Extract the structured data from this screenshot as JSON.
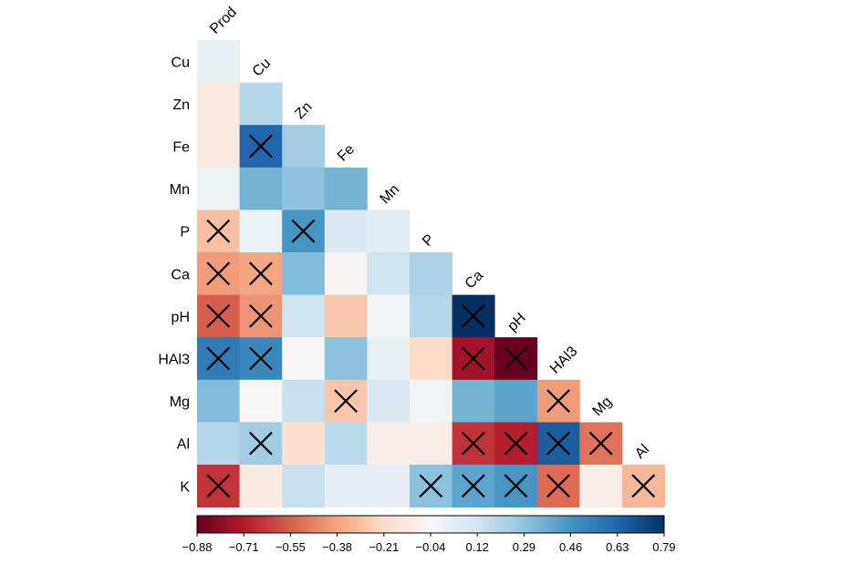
{
  "chart_data": {
    "type": "heatmap",
    "variables": [
      "Prod",
      "Cu",
      "Zn",
      "Fe",
      "Mn",
      "P",
      "Ca",
      "pH",
      "HAl3",
      "Mg",
      "Al",
      "K"
    ],
    "row_labels": [
      "Cu",
      "Zn",
      "Fe",
      "Mn",
      "P",
      "Ca",
      "pH",
      "HAl3",
      "Mg",
      "Al",
      "K"
    ],
    "column_labels": [
      "Prod",
      "Cu",
      "Zn",
      "Fe",
      "Mn",
      "P",
      "Ca",
      "pH",
      "HAl3",
      "Mg",
      "Al"
    ],
    "values": [
      [
        0.02
      ],
      [
        -0.12,
        0.2
      ],
      [
        -0.12,
        0.62,
        0.25
      ],
      [
        0.0,
        0.35,
        0.3,
        0.35
      ],
      [
        -0.3,
        0.01,
        0.45,
        0.08,
        0.05
      ],
      [
        -0.4,
        -0.38,
        0.32,
        -0.06,
        0.12,
        0.22
      ],
      [
        -0.55,
        -0.42,
        0.12,
        -0.28,
        -0.03,
        0.2,
        0.79
      ],
      [
        0.55,
        0.5,
        -0.05,
        0.3,
        0.02,
        -0.2,
        -0.75,
        -0.88
      ],
      [
        0.32,
        -0.05,
        0.15,
        -0.28,
        0.08,
        -0.02,
        0.35,
        0.4,
        -0.4
      ],
      [
        0.2,
        0.25,
        -0.18,
        0.18,
        -0.1,
        -0.1,
        -0.65,
        -0.7,
        0.65,
        -0.5
      ],
      [
        -0.65,
        -0.12,
        0.15,
        0.03,
        0.03,
        0.3,
        0.4,
        0.45,
        -0.52,
        -0.1,
        -0.32
      ]
    ],
    "crossed": [
      [
        false
      ],
      [
        false,
        false
      ],
      [
        false,
        true,
        false
      ],
      [
        false,
        false,
        false,
        false
      ],
      [
        true,
        false,
        true,
        false,
        false
      ],
      [
        true,
        true,
        false,
        false,
        false,
        false
      ],
      [
        true,
        true,
        false,
        false,
        false,
        false,
        true
      ],
      [
        true,
        true,
        false,
        false,
        false,
        false,
        true,
        true
      ],
      [
        false,
        false,
        false,
        true,
        false,
        false,
        false,
        false,
        true
      ],
      [
        false,
        true,
        false,
        false,
        false,
        false,
        true,
        true,
        true,
        true
      ],
      [
        true,
        false,
        false,
        false,
        false,
        true,
        true,
        true,
        true,
        false,
        true
      ]
    ],
    "colorbar": {
      "range": [
        -0.88,
        0.79
      ],
      "tick_labels": [
        "−0.88",
        "−0.71",
        "−0.55",
        "−0.38",
        "−0.21",
        "−0.04",
        "0.12",
        "0.29",
        "0.46",
        "0.63",
        "0.79"
      ]
    },
    "color_stops": [
      "#67001f",
      "#b2182b",
      "#d6604d",
      "#f4a582",
      "#fddbc7",
      "#f7f7f7",
      "#d1e5f0",
      "#92c5de",
      "#4393c3",
      "#2166ac",
      "#053061"
    ],
    "mark_color": "#000000"
  }
}
